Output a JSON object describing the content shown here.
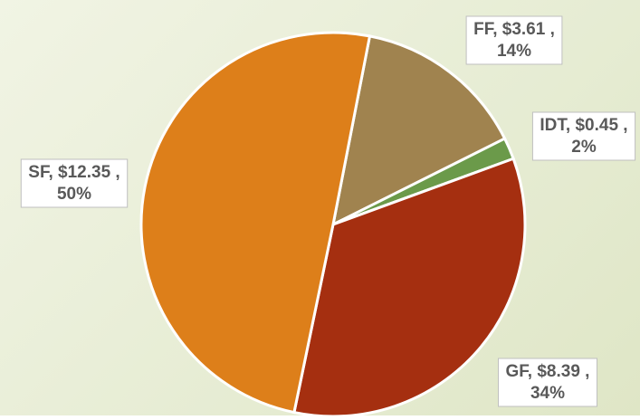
{
  "chart_data": {
    "type": "pie",
    "values": [
      3.61,
      0.45,
      8.39,
      12.35
    ],
    "value_labels": [
      [
        "FF, $3.61 ,",
        "14%"
      ],
      [
        "IDT, $0.45 ,",
        "2%"
      ],
      [
        "GF, $8.39 ,",
        "34%"
      ],
      [
        "SF, $12.35 ,",
        "50%"
      ]
    ],
    "colors": [
      "#a0834f",
      "#6b9a4a",
      "#a52f10",
      "#dd7f1a"
    ],
    "start_angle": 11
  }
}
